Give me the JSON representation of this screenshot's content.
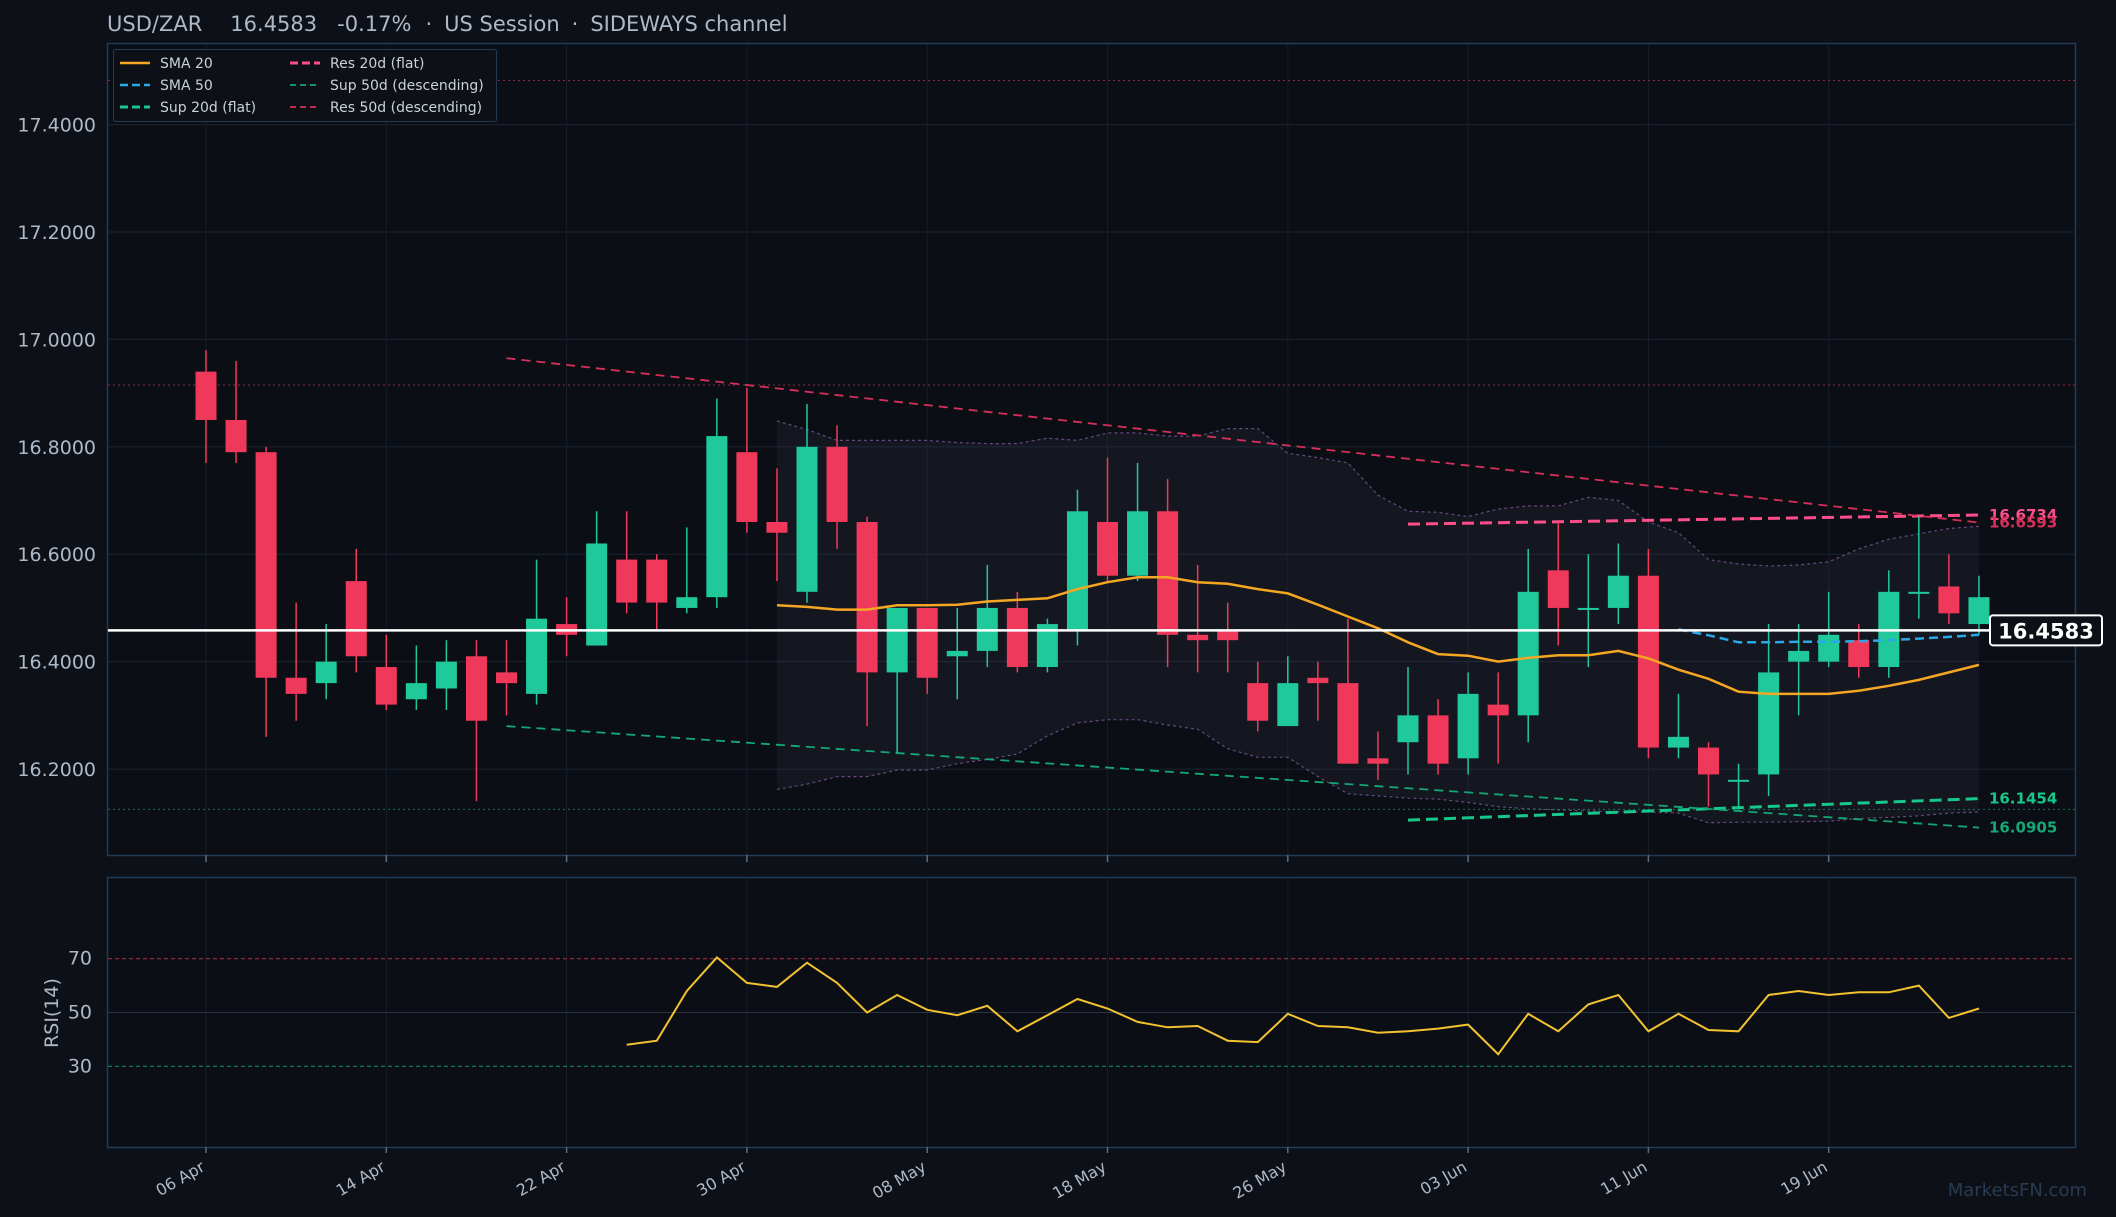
{
  "title": {
    "pair": "USD/ZAR",
    "price": "16.4583",
    "change": "-0.17%",
    "session": "US Session",
    "channel": "SIDEWAYS channel"
  },
  "watermark": "MarketsFN.com",
  "colors": {
    "background": "#0d1117",
    "up": "#1fc99a",
    "down": "#f0395a",
    "sma20": "#f5a623",
    "sma50": "#2aa8e8",
    "sup20": "#16c88a",
    "res20": "#ff4f8a",
    "sup50": "#13a874",
    "res50": "#d6305a",
    "rsi": "#f2c230",
    "price_line": "#ffffff"
  },
  "chart_data": [
    {
      "type": "candlestick",
      "ylim": [
        16.04,
        17.55
      ],
      "y_ticks": [
        "16.2000",
        "16.4000",
        "16.6000",
        "16.8000",
        "17.0000",
        "17.2000",
        "17.4000"
      ],
      "x_labels": [
        {
          "index": 0,
          "label": "06 Apr"
        },
        {
          "index": 6,
          "label": "14 Apr"
        },
        {
          "index": 12,
          "label": "22 Apr"
        },
        {
          "index": 18,
          "label": "30 Apr"
        },
        {
          "index": 24,
          "label": "08 May"
        },
        {
          "index": 30,
          "label": "18 May"
        },
        {
          "index": 36,
          "label": "26 May"
        },
        {
          "index": 42,
          "label": "03 Jun"
        },
        {
          "index": 48,
          "label": "11 Jun"
        },
        {
          "index": 54,
          "label": "19 Jun"
        }
      ],
      "candles": [
        [
          16.94,
          16.98,
          16.77,
          16.85
        ],
        [
          16.85,
          16.96,
          16.77,
          16.79
        ],
        [
          16.79,
          16.8,
          16.26,
          16.37
        ],
        [
          16.37,
          16.51,
          16.29,
          16.34
        ],
        [
          16.36,
          16.47,
          16.33,
          16.4
        ],
        [
          16.55,
          16.61,
          16.38,
          16.41
        ],
        [
          16.39,
          16.45,
          16.31,
          16.32
        ],
        [
          16.33,
          16.43,
          16.31,
          16.36
        ],
        [
          16.35,
          16.44,
          16.31,
          16.4
        ],
        [
          16.41,
          16.44,
          16.14,
          16.29
        ],
        [
          16.38,
          16.44,
          16.3,
          16.36
        ],
        [
          16.34,
          16.59,
          16.32,
          16.48
        ],
        [
          16.47,
          16.52,
          16.41,
          16.45
        ],
        [
          16.43,
          16.68,
          16.43,
          16.62
        ],
        [
          16.59,
          16.68,
          16.49,
          16.51
        ],
        [
          16.59,
          16.6,
          16.46,
          16.51
        ],
        [
          16.5,
          16.65,
          16.49,
          16.52
        ],
        [
          16.52,
          16.89,
          16.5,
          16.82
        ],
        [
          16.79,
          16.91,
          16.64,
          16.66
        ],
        [
          16.66,
          16.76,
          16.55,
          16.64
        ],
        [
          16.53,
          16.88,
          16.51,
          16.8
        ],
        [
          16.8,
          16.84,
          16.61,
          16.66
        ],
        [
          16.66,
          16.67,
          16.28,
          16.38
        ],
        [
          16.38,
          16.5,
          16.23,
          16.5
        ],
        [
          16.5,
          16.5,
          16.34,
          16.37
        ],
        [
          16.41,
          16.5,
          16.33,
          16.42
        ],
        [
          16.42,
          16.58,
          16.39,
          16.5
        ],
        [
          16.5,
          16.53,
          16.38,
          16.39
        ],
        [
          16.39,
          16.48,
          16.38,
          16.47
        ],
        [
          16.46,
          16.72,
          16.43,
          16.68
        ],
        [
          16.66,
          16.78,
          16.55,
          16.56
        ],
        [
          16.56,
          16.77,
          16.55,
          16.68
        ],
        [
          16.68,
          16.74,
          16.39,
          16.45
        ],
        [
          16.45,
          16.58,
          16.38,
          16.44
        ],
        [
          16.46,
          16.51,
          16.38,
          16.44
        ],
        [
          16.36,
          16.4,
          16.27,
          16.29
        ],
        [
          16.28,
          16.41,
          16.28,
          16.36
        ],
        [
          16.37,
          16.4,
          16.29,
          16.36
        ],
        [
          16.36,
          16.48,
          16.21,
          16.21
        ],
        [
          16.22,
          16.27,
          16.18,
          16.21
        ],
        [
          16.25,
          16.39,
          16.19,
          16.3
        ],
        [
          16.3,
          16.33,
          16.19,
          16.21
        ],
        [
          16.22,
          16.38,
          16.19,
          16.34
        ],
        [
          16.32,
          16.38,
          16.21,
          16.3
        ],
        [
          16.3,
          16.61,
          16.25,
          16.53
        ],
        [
          16.57,
          16.66,
          16.43,
          16.5
        ],
        [
          16.5,
          16.6,
          16.39,
          16.5
        ],
        [
          16.5,
          16.62,
          16.47,
          16.56
        ],
        [
          16.56,
          16.61,
          16.22,
          16.24
        ],
        [
          16.24,
          16.34,
          16.22,
          16.26
        ],
        [
          16.24,
          16.25,
          16.13,
          16.19
        ],
        [
          16.18,
          16.21,
          16.13,
          16.18
        ],
        [
          16.19,
          16.47,
          16.15,
          16.38
        ],
        [
          16.4,
          16.47,
          16.3,
          16.42
        ],
        [
          16.4,
          16.53,
          16.39,
          16.45
        ],
        [
          16.44,
          16.47,
          16.37,
          16.39
        ],
        [
          16.39,
          16.57,
          16.37,
          16.53
        ],
        [
          16.53,
          16.67,
          16.48,
          16.53
        ],
        [
          16.54,
          16.6,
          16.47,
          16.49
        ],
        [
          16.47,
          16.56,
          16.45,
          16.52
        ]
      ],
      "sma20": [
        [
          19,
          16.505
        ],
        [
          20,
          16.502
        ],
        [
          21,
          16.497
        ],
        [
          22,
          16.497
        ],
        [
          23,
          16.505
        ],
        [
          24,
          16.505
        ],
        [
          25,
          16.506
        ],
        [
          26,
          16.512
        ],
        [
          27,
          16.515
        ],
        [
          28,
          16.518
        ],
        [
          29,
          16.535
        ],
        [
          30,
          16.548
        ],
        [
          31,
          16.557
        ],
        [
          32,
          16.557
        ],
        [
          33,
          16.548
        ],
        [
          34,
          16.545
        ],
        [
          35,
          16.535
        ],
        [
          36,
          16.527
        ],
        [
          37,
          16.506
        ],
        [
          38,
          16.484
        ],
        [
          39,
          16.462
        ],
        [
          40,
          16.436
        ],
        [
          41,
          16.414
        ],
        [
          42,
          16.411
        ],
        [
          43,
          16.4
        ],
        [
          44,
          16.407
        ],
        [
          45,
          16.412
        ],
        [
          46,
          16.412
        ],
        [
          47,
          16.42
        ],
        [
          48,
          16.406
        ],
        [
          49,
          16.385
        ],
        [
          50,
          16.368
        ],
        [
          51,
          16.344
        ],
        [
          52,
          16.34
        ],
        [
          53,
          16.34
        ],
        [
          54,
          16.34
        ],
        [
          55,
          16.346
        ],
        [
          56,
          16.355
        ],
        [
          57,
          16.366
        ],
        [
          58,
          16.38
        ],
        [
          59,
          16.394
        ]
      ],
      "sma50": [
        [
          49,
          16.46
        ],
        [
          50,
          16.449
        ],
        [
          51,
          16.436
        ],
        [
          52,
          16.436
        ],
        [
          53,
          16.437
        ],
        [
          54,
          16.437
        ],
        [
          55,
          16.438
        ],
        [
          56,
          16.44
        ],
        [
          57,
          16.443
        ],
        [
          58,
          16.446
        ],
        [
          59,
          16.45
        ]
      ],
      "bollinger_upper": [
        [
          19,
          16.848
        ],
        [
          20,
          16.832
        ],
        [
          21,
          16.812
        ],
        [
          22,
          16.812
        ],
        [
          23,
          16.812
        ],
        [
          24,
          16.812
        ],
        [
          25,
          16.808
        ],
        [
          26,
          16.806
        ],
        [
          27,
          16.806
        ],
        [
          28,
          16.816
        ],
        [
          29,
          16.812
        ],
        [
          30,
          16.826
        ],
        [
          31,
          16.826
        ],
        [
          32,
          16.82
        ],
        [
          33,
          16.82
        ],
        [
          34,
          16.834
        ],
        [
          35,
          16.834
        ],
        [
          36,
          16.788
        ],
        [
          37,
          16.78
        ],
        [
          38,
          16.77
        ],
        [
          39,
          16.71
        ],
        [
          40,
          16.68
        ],
        [
          41,
          16.678
        ],
        [
          42,
          16.67
        ],
        [
          43,
          16.684
        ],
        [
          44,
          16.69
        ],
        [
          45,
          16.69
        ],
        [
          46,
          16.706
        ],
        [
          47,
          16.7
        ],
        [
          48,
          16.66
        ],
        [
          49,
          16.64
        ],
        [
          50,
          16.59
        ],
        [
          51,
          16.582
        ],
        [
          52,
          16.578
        ],
        [
          53,
          16.58
        ],
        [
          54,
          16.586
        ],
        [
          55,
          16.61
        ],
        [
          56,
          16.628
        ],
        [
          57,
          16.638
        ],
        [
          58,
          16.648
        ],
        [
          59,
          16.652
        ]
      ],
      "bollinger_lower": [
        [
          19,
          16.162
        ],
        [
          20,
          16.172
        ],
        [
          21,
          16.186
        ],
        [
          22,
          16.186
        ],
        [
          23,
          16.198
        ],
        [
          24,
          16.198
        ],
        [
          25,
          16.21
        ],
        [
          26,
          16.218
        ],
        [
          27,
          16.228
        ],
        [
          28,
          16.262
        ],
        [
          29,
          16.286
        ],
        [
          30,
          16.292
        ],
        [
          31,
          16.292
        ],
        [
          32,
          16.282
        ],
        [
          33,
          16.274
        ],
        [
          34,
          16.238
        ],
        [
          35,
          16.222
        ],
        [
          36,
          16.222
        ],
        [
          37,
          16.186
        ],
        [
          38,
          16.154
        ],
        [
          39,
          16.15
        ],
        [
          40,
          16.146
        ],
        [
          41,
          16.144
        ],
        [
          42,
          16.138
        ],
        [
          43,
          16.13
        ],
        [
          44,
          16.126
        ],
        [
          45,
          16.124
        ],
        [
          46,
          16.122
        ],
        [
          47,
          16.12
        ],
        [
          48,
          16.12
        ],
        [
          49,
          16.118
        ],
        [
          50,
          16.1
        ],
        [
          51,
          16.101
        ],
        [
          52,
          16.101
        ],
        [
          53,
          16.102
        ],
        [
          54,
          16.103
        ],
        [
          55,
          16.108
        ],
        [
          56,
          16.11
        ],
        [
          57,
          16.113
        ],
        [
          58,
          16.118
        ],
        [
          59,
          16.12
        ]
      ],
      "support_resistance": [
        {
          "name": "Res 20d (flat)",
          "x": [
            40,
            59
          ],
          "y": [
            16.656,
            16.673
          ],
          "label": "16.6734"
        },
        {
          "name": "Sup 20d (flat)",
          "x": [
            40,
            59
          ],
          "y": [
            16.105,
            16.145
          ],
          "label": "16.1454"
        },
        {
          "name": "Sup 50d (descending)",
          "x": [
            10,
            59
          ],
          "y": [
            16.28,
            16.091
          ],
          "label": "16.0905"
        },
        {
          "name": "Res 50d (descending)",
          "x": [
            10,
            59
          ],
          "y": [
            16.965,
            16.659
          ],
          "label": "16.6593"
        }
      ],
      "reference_levels": [
        17.482,
        16.915,
        16.125
      ],
      "last_price": "16.4583",
      "legend": [
        "SMA 20",
        "SMA 50",
        "Sup 20d (flat)",
        "Res 20d (flat)",
        "Sup 50d (descending)",
        "Res 50d (descending)"
      ]
    },
    {
      "type": "line",
      "ylabel": "RSI(14)",
      "ylim": [
        0,
        100
      ],
      "y_ticks": [
        "30",
        "50",
        "70"
      ],
      "levels": [
        70,
        50,
        30
      ],
      "rsi": [
        [
          14,
          38
        ],
        [
          15,
          39.5
        ],
        [
          16,
          58
        ],
        [
          17,
          70.5
        ],
        [
          18,
          61
        ],
        [
          19,
          59.5
        ],
        [
          20,
          68.5
        ],
        [
          21,
          61
        ],
        [
          22,
          50
        ],
        [
          23,
          56.5
        ],
        [
          24,
          51
        ],
        [
          25,
          49
        ],
        [
          26,
          52.5
        ],
        [
          27,
          43
        ],
        [
          28,
          49
        ],
        [
          29,
          55
        ],
        [
          30,
          51.5
        ],
        [
          31,
          46.5
        ],
        [
          32,
          44.5
        ],
        [
          33,
          45
        ],
        [
          34,
          39.5
        ],
        [
          35,
          39
        ],
        [
          36,
          49.5
        ],
        [
          37,
          45
        ],
        [
          38,
          44.5
        ],
        [
          39,
          42.5
        ],
        [
          40,
          43
        ],
        [
          41,
          44
        ],
        [
          42,
          45.5
        ],
        [
          43,
          34.5
        ],
        [
          44,
          49.5
        ],
        [
          45,
          43
        ],
        [
          46,
          53
        ],
        [
          47,
          56.5
        ],
        [
          48,
          43
        ],
        [
          49,
          49.5
        ],
        [
          50,
          43.5
        ],
        [
          51,
          43
        ],
        [
          52,
          56.5
        ],
        [
          53,
          58
        ],
        [
          54,
          56.5
        ],
        [
          55,
          57.5
        ],
        [
          56,
          57.5
        ],
        [
          57,
          60
        ],
        [
          58,
          48
        ],
        [
          59,
          51.5
        ]
      ]
    }
  ]
}
